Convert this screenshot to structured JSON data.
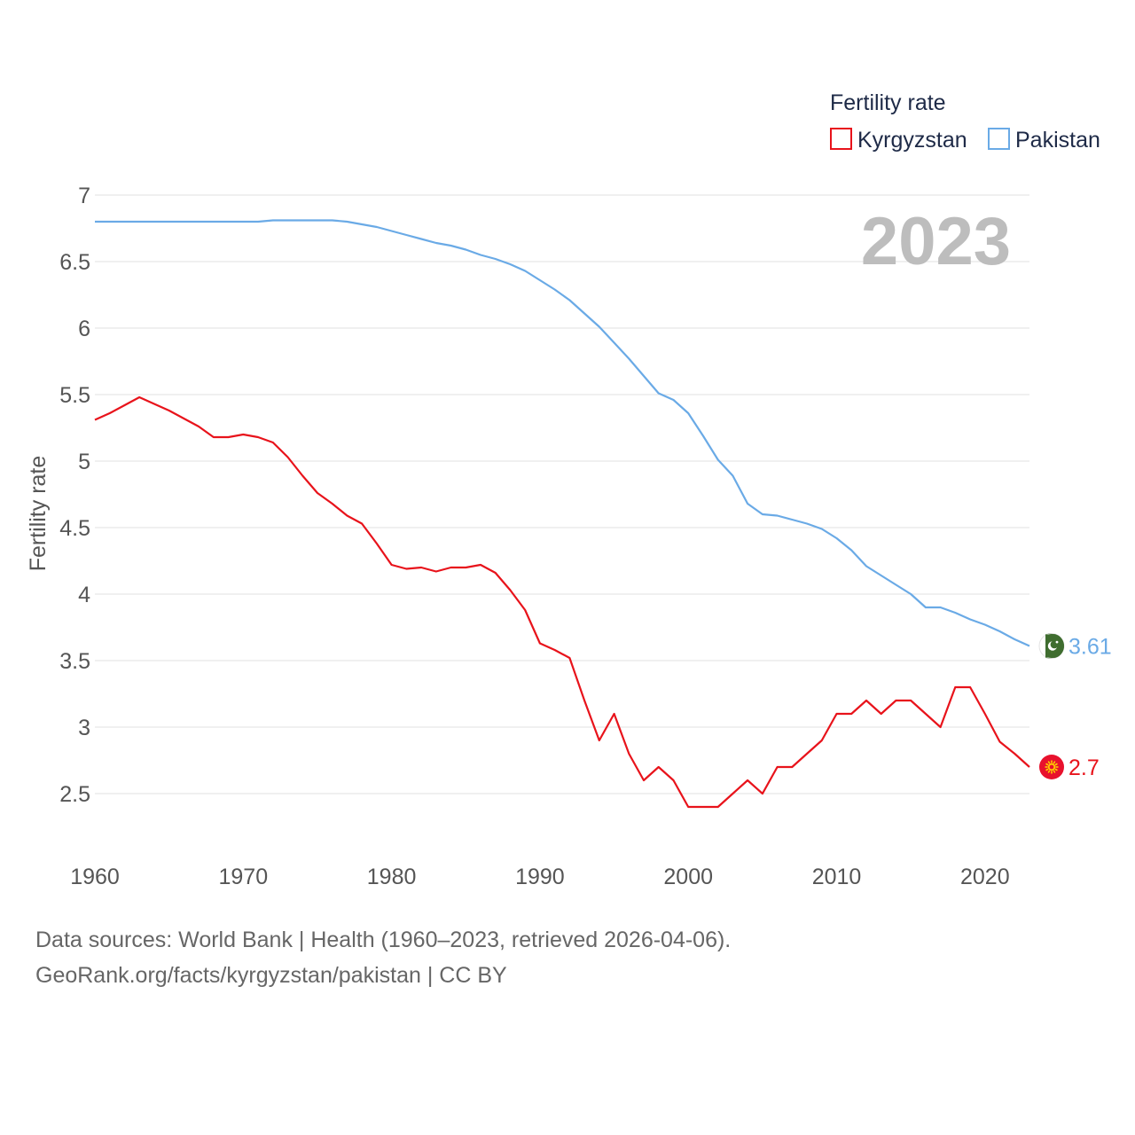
{
  "chart_data": {
    "type": "line",
    "title": "Fertility rate",
    "ylabel": "Fertility rate",
    "xlabel": "",
    "year_label": "2023",
    "xlim": [
      1960,
      2023
    ],
    "ylim": [
      2,
      7
    ],
    "y_ticks": [
      2.5,
      3,
      3.5,
      4,
      4.5,
      5,
      5.5,
      6,
      6.5,
      7
    ],
    "y_tick_labels": [
      "2.5",
      "3",
      "3.5",
      "4",
      "4.5",
      "5",
      "5.5",
      "6",
      "6.5",
      "7"
    ],
    "x_ticks": [
      1960,
      1970,
      1980,
      1990,
      2000,
      2010,
      2020
    ],
    "x_tick_labels": [
      "1960",
      "1970",
      "1980",
      "1990",
      "2000",
      "2010",
      "2020"
    ],
    "grid": true,
    "legend_position": "top-right",
    "x": [
      1960,
      1961,
      1962,
      1963,
      1964,
      1965,
      1966,
      1967,
      1968,
      1969,
      1970,
      1971,
      1972,
      1973,
      1974,
      1975,
      1976,
      1977,
      1978,
      1979,
      1980,
      1981,
      1982,
      1983,
      1984,
      1985,
      1986,
      1987,
      1988,
      1989,
      1990,
      1991,
      1992,
      1993,
      1994,
      1995,
      1996,
      1997,
      1998,
      1999,
      2000,
      2001,
      2002,
      2003,
      2004,
      2005,
      2006,
      2007,
      2008,
      2009,
      2010,
      2011,
      2012,
      2013,
      2014,
      2015,
      2016,
      2017,
      2018,
      2019,
      2020,
      2021,
      2022,
      2023
    ],
    "series": [
      {
        "name": "Kyrgyzstan",
        "color": "#e8131b",
        "end_label": "2.7",
        "flag_icon": "kyrgyzstan-flag-icon",
        "values": [
          5.31,
          5.36,
          5.42,
          5.48,
          5.43,
          5.38,
          5.32,
          5.26,
          5.18,
          5.18,
          5.2,
          5.18,
          5.14,
          5.03,
          4.89,
          4.76,
          4.68,
          4.59,
          4.53,
          4.38,
          4.22,
          4.19,
          4.2,
          4.17,
          4.2,
          4.2,
          4.22,
          4.16,
          4.03,
          3.88,
          3.63,
          3.58,
          3.52,
          3.2,
          2.9,
          3.1,
          2.8,
          2.6,
          2.7,
          2.6,
          2.4,
          2.4,
          2.4,
          2.5,
          2.6,
          2.5,
          2.7,
          2.7,
          2.8,
          2.9,
          3.1,
          3.1,
          3.2,
          3.1,
          3.2,
          3.2,
          3.1,
          3.0,
          3.3,
          3.3,
          3.1,
          2.89,
          2.8,
          2.7
        ]
      },
      {
        "name": "Pakistan",
        "color": "#6aaae6",
        "end_label": "3.61",
        "flag_icon": "pakistan-flag-icon",
        "values": [
          6.8,
          6.8,
          6.8,
          6.8,
          6.8,
          6.8,
          6.8,
          6.8,
          6.8,
          6.8,
          6.8,
          6.8,
          6.81,
          6.81,
          6.81,
          6.81,
          6.81,
          6.8,
          6.78,
          6.76,
          6.73,
          6.7,
          6.67,
          6.64,
          6.62,
          6.59,
          6.55,
          6.52,
          6.48,
          6.43,
          6.36,
          6.29,
          6.21,
          6.11,
          6.01,
          5.89,
          5.77,
          5.64,
          5.51,
          5.46,
          5.36,
          5.19,
          5.01,
          4.89,
          4.68,
          4.6,
          4.59,
          4.56,
          4.53,
          4.49,
          4.42,
          4.33,
          4.21,
          4.14,
          4.07,
          4.0,
          3.9,
          3.9,
          3.86,
          3.81,
          3.77,
          3.72,
          3.66,
          3.61
        ]
      }
    ]
  },
  "footer": {
    "source_line": "Data sources: World Bank | Health (1960–2023, retrieved 2026-04-06).",
    "url_line": "GeoRank.org/facts/kyrgyzstan/pakistan | CC BY"
  }
}
